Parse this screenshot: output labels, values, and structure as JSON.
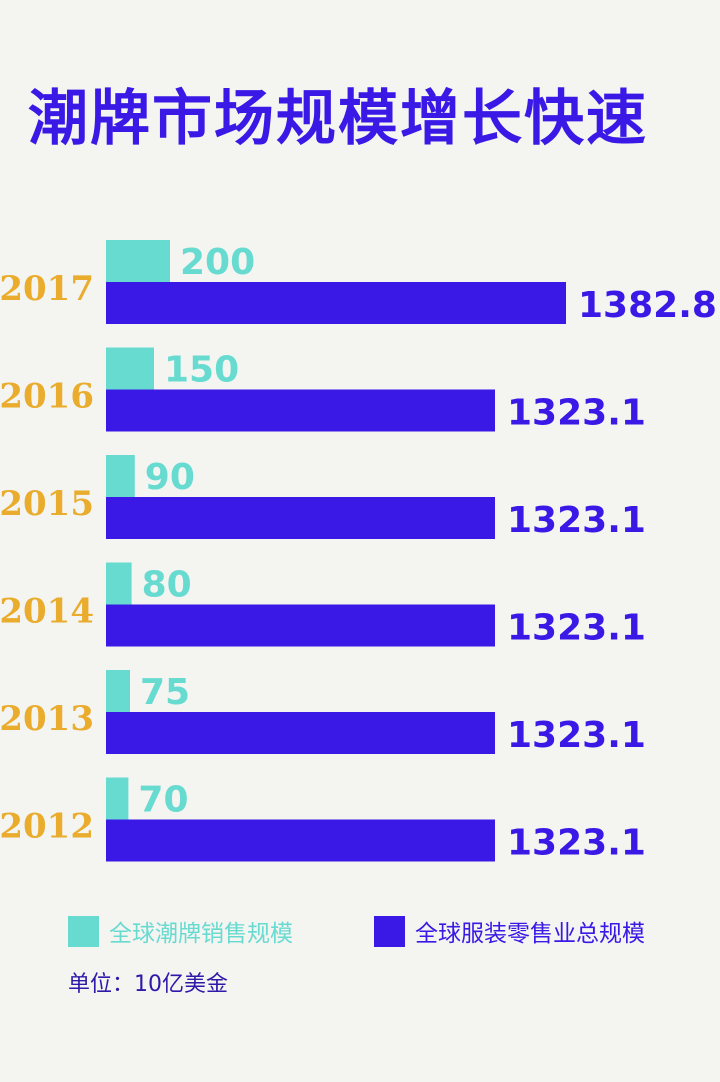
{
  "title": "潮牌市场规模增长快速",
  "colors": {
    "trend": "#68dbd1",
    "total": "#3a18e6",
    "year": "#e9ac2c",
    "background": "#f4f4f1"
  },
  "legend": {
    "trend_label": "全球潮牌销售规模",
    "total_label": "全球服装零售业总规模"
  },
  "unit": "单位：10亿美金",
  "chart_data": {
    "type": "bar",
    "orientation": "horizontal",
    "categories": [
      "2017",
      "2016",
      "2015",
      "2014",
      "2013",
      "2012"
    ],
    "series": [
      {
        "name": "全球潮牌销售规模",
        "values": [
          200,
          150,
          90,
          80,
          75,
          70
        ],
        "labels": [
          "200",
          "150",
          "90",
          "80",
          "75",
          "70"
        ]
      },
      {
        "name": "全球服装零售业总规模",
        "values": [
          1382.8,
          1323.1,
          1323.1,
          1323.1,
          1323.1,
          1323.1
        ],
        "labels": [
          "1382.8",
          "1323.1",
          "1323.1",
          "1323.1",
          "1323.1",
          "1323.1"
        ]
      }
    ]
  }
}
